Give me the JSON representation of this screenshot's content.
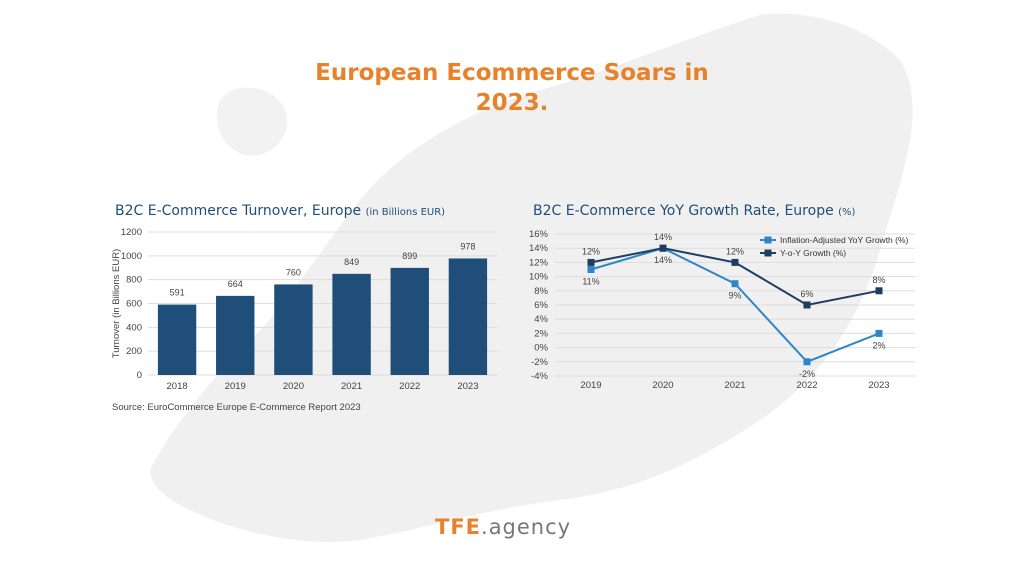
{
  "headline": {
    "line1": "European Ecommerce Soars in",
    "line2": "2023."
  },
  "colors": {
    "accent": "#e8822a",
    "bar": "#1f4e79",
    "navy": "#1f3c63",
    "light_blue": "#2e86c9"
  },
  "bar_panel": {
    "title": "B2C E-Commerce Turnover, Europe",
    "unit": "(in Billions EUR)",
    "source": "Source: EuroCommerce Europe E-Commerce Report 2023"
  },
  "line_panel": {
    "title": "B2C E-Commerce YoY Growth Rate, Europe",
    "unit": "(%)"
  },
  "logo": {
    "brand": "TFE",
    "suffix": ".agency"
  },
  "chart_data": [
    {
      "type": "bar",
      "title": "B2C E-Commerce Turnover, Europe (in Billions EUR)",
      "categories": [
        "2018",
        "2019",
        "2020",
        "2021",
        "2022",
        "2023"
      ],
      "values": [
        591,
        664,
        760,
        849,
        899,
        978
      ],
      "ylabel": "Turnover (in Billions EUR)",
      "ylim": [
        0,
        1200
      ],
      "yticks": [
        "0",
        "200",
        "400",
        "600",
        "800",
        "1000",
        "1200"
      ],
      "grid": true
    },
    {
      "type": "line",
      "title": "B2C E-Commerce YoY Growth Rate, Europe (%)",
      "categories": [
        "2019",
        "2020",
        "2021",
        "2022",
        "2023"
      ],
      "ylim": [
        -4,
        16
      ],
      "yticks": [
        "-4%",
        "-2%",
        "0%",
        "2%",
        "4%",
        "6%",
        "8%",
        "10%",
        "12%",
        "14%",
        "16%"
      ],
      "legend_position": "top-right",
      "grid": true,
      "series": [
        {
          "name": "Inflation-Adjusted YoY Growth (%)",
          "values": [
            11,
            14,
            9,
            -2,
            2
          ],
          "labels": [
            "11%",
            "14%",
            "9%",
            "-2%",
            "2%"
          ]
        },
        {
          "name": "Y-o-Y Growth (%)",
          "values": [
            12,
            14,
            12,
            6,
            8
          ],
          "labels": [
            "12%",
            "14%",
            "12%",
            "6%",
            "8%"
          ]
        }
      ]
    }
  ]
}
